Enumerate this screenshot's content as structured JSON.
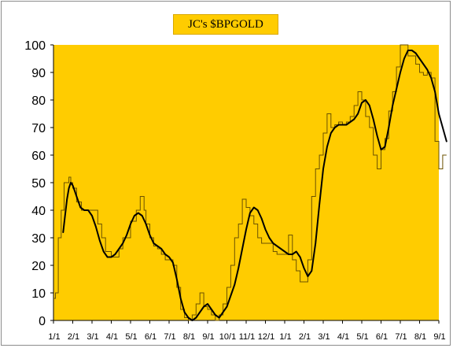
{
  "chart_data": {
    "type": "line",
    "title": "JC's $BPGOLD",
    "xlabel": "",
    "ylabel": "",
    "ylim": [
      0,
      100
    ],
    "yticks": [
      0,
      10,
      20,
      30,
      40,
      50,
      60,
      70,
      80,
      90,
      100
    ],
    "x_tick_labels": [
      "1/1",
      "2/1",
      "3/1",
      "4/1",
      "5/1",
      "6/1",
      "7/1",
      "8/1",
      "9/1",
      "10/1",
      "11/1",
      "12/1",
      "1/1",
      "2/1",
      "3/1",
      "4/1",
      "5/1",
      "6/1",
      "7/1",
      "8/1",
      "9/1"
    ],
    "grid": false,
    "legend": "none",
    "colors": {
      "plot_background": "#ffcc00",
      "raw_line": "#6b5200",
      "smooth_line": "#000000"
    },
    "series": [
      {
        "style": "raw-step",
        "x": [
          0.0,
          0.1,
          0.25,
          0.4,
          0.55,
          0.7,
          0.8,
          0.9,
          1.0,
          1.2,
          1.45,
          1.6,
          1.8,
          2.0,
          2.3,
          2.5,
          2.7,
          3.0,
          3.2,
          3.4,
          3.6,
          3.8,
          4.0,
          4.3,
          4.5,
          4.7,
          4.8,
          5.0,
          5.2,
          5.4,
          5.6,
          5.8,
          6.0,
          6.2,
          6.4,
          6.6,
          6.8,
          7.0,
          7.2,
          7.4,
          7.6,
          7.8,
          8.0,
          8.2,
          8.4,
          8.6,
          8.8,
          9.0,
          9.2,
          9.4,
          9.6,
          9.8,
          10.0,
          10.2,
          10.4,
          10.6,
          10.8,
          11.0,
          11.2,
          11.4,
          11.6,
          11.8,
          12.0,
          12.2,
          12.4,
          12.6,
          12.8,
          13.0,
          13.2,
          13.4,
          13.6,
          13.8,
          14.0,
          14.2,
          14.4,
          14.6,
          14.8,
          15.0,
          15.2,
          15.4,
          15.6,
          15.8,
          16.0,
          16.2,
          16.4,
          16.6,
          16.8,
          17.0,
          17.2,
          17.4,
          17.6,
          17.8,
          18.0,
          18.2,
          18.4,
          18.6,
          18.8,
          19.0,
          19.2,
          19.4,
          19.6,
          19.8,
          20.0,
          20.2,
          20.4
        ],
        "values": [
          8,
          10,
          30,
          40,
          50,
          50,
          52,
          50,
          48,
          43,
          40,
          40,
          40,
          40,
          35,
          30,
          25,
          23,
          23,
          26,
          30,
          30,
          36,
          40,
          45,
          40,
          35,
          30,
          27,
          26,
          24,
          22,
          22,
          20,
          12,
          4,
          1,
          0,
          2,
          6,
          10,
          5,
          4,
          2,
          0,
          2,
          6,
          12,
          20,
          30,
          35,
          44,
          41,
          38,
          35,
          30,
          28,
          28,
          28,
          25,
          24,
          24,
          24,
          31,
          22,
          18,
          14,
          14,
          22,
          45,
          55,
          60,
          68,
          75,
          70,
          71,
          72,
          71,
          72,
          74,
          78,
          83,
          80,
          74,
          70,
          60,
          55,
          62,
          66,
          76,
          83,
          92,
          100,
          100,
          96,
          96,
          93,
          90,
          89,
          90,
          88,
          65,
          55,
          60,
          60
        ]
      },
      {
        "style": "smoothed",
        "x": [
          0.5,
          0.6,
          0.7,
          0.8,
          0.9,
          1.0,
          1.1,
          1.2,
          1.4,
          1.6,
          1.8,
          2.0,
          2.2,
          2.4,
          2.6,
          2.8,
          3.0,
          3.2,
          3.4,
          3.6,
          3.8,
          4.0,
          4.2,
          4.4,
          4.6,
          4.8,
          5.0,
          5.2,
          5.4,
          5.6,
          5.8,
          6.0,
          6.2,
          6.4,
          6.6,
          6.8,
          7.0,
          7.2,
          7.4,
          7.6,
          7.8,
          8.0,
          8.2,
          8.4,
          8.6,
          8.8,
          9.0,
          9.2,
          9.4,
          9.6,
          9.8,
          10.0,
          10.2,
          10.4,
          10.6,
          10.8,
          11.0,
          11.2,
          11.4,
          11.6,
          11.8,
          12.0,
          12.2,
          12.4,
          12.6,
          12.8,
          13.0,
          13.2,
          13.4,
          13.6,
          13.8,
          14.0,
          14.2,
          14.4,
          14.6,
          14.8,
          15.0,
          15.2,
          15.4,
          15.6,
          15.8,
          16.0,
          16.2,
          16.4,
          16.6,
          16.8,
          17.0,
          17.2,
          17.4,
          17.6,
          17.8,
          18.0,
          18.2,
          18.4,
          18.6,
          18.8,
          19.0,
          19.2,
          19.4,
          19.6,
          19.8,
          20.0,
          20.2,
          20.4
        ],
        "values": [
          32,
          38,
          44,
          48,
          50,
          49,
          47,
          45,
          41,
          40,
          40,
          38,
          34,
          29,
          25,
          23,
          23,
          24,
          26,
          28,
          31,
          35,
          38,
          39,
          38,
          35,
          31,
          28,
          27,
          26,
          24,
          23,
          21,
          15,
          8,
          3,
          1,
          0,
          1,
          3,
          5,
          6,
          4,
          2,
          1,
          3,
          5,
          9,
          13,
          19,
          26,
          33,
          39,
          41,
          40,
          37,
          33,
          30,
          28,
          27,
          26,
          25,
          24,
          24,
          25,
          23,
          19,
          16,
          18,
          28,
          42,
          55,
          63,
          68,
          70,
          71,
          71,
          71,
          72,
          73,
          75,
          79,
          80,
          78,
          73,
          67,
          62,
          63,
          70,
          78,
          84,
          90,
          95,
          98,
          98,
          97,
          95,
          93,
          91,
          88,
          83,
          75,
          70,
          65
        ]
      }
    ]
  }
}
